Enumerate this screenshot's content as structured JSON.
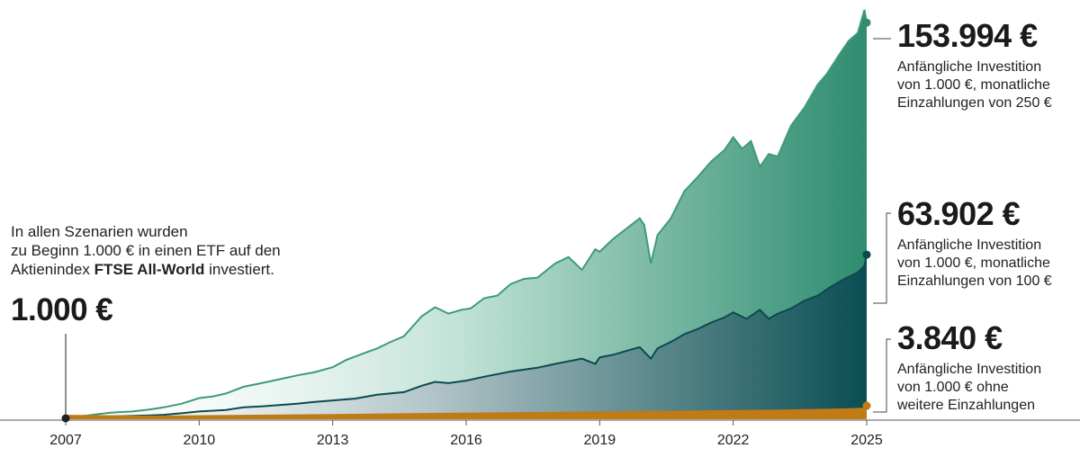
{
  "intro": {
    "line1": "In allen Szenarien wurden",
    "line2": "zu Beginn 1.000 € in einen ETF auf den",
    "line3_pre": "Aktienindex ",
    "line3_bold": "FTSE All-World",
    "line3_post": " investiert."
  },
  "start_value": "1.000 €",
  "callouts": [
    {
      "value": "153.994 €",
      "lines": [
        "Anfängliche Investition",
        "von 1.000 €, monatliche",
        "Einzahlungen von 250 €"
      ]
    },
    {
      "value": "63.902 €",
      "lines": [
        "Anfängliche Investition",
        "von 1.000 €, monatliche",
        "Einzahlungen von 100 €"
      ]
    },
    {
      "value": "3.840 €",
      "lines": [
        "Anfängliche Investition",
        "von 1.000 € ohne",
        "weitere Einzahlungen"
      ]
    }
  ],
  "chart_data": {
    "type": "area",
    "x_ticks": [
      "2007",
      "2010",
      "2013",
      "2016",
      "2019",
      "2022",
      "2025"
    ],
    "xlim": [
      2007,
      2025
    ],
    "ylim": [
      0,
      160000
    ],
    "colors": {
      "top_area": "#2e8c6f",
      "top_line": "#3d9a7c",
      "mid_area": "#0d5358",
      "mid_line": "#0b4a4f",
      "bottom_area": "#c07a16",
      "start_dot": "#222222",
      "axis": "#555555"
    },
    "series": [
      {
        "name": "Anfängliche Investition von 1.000 €, monatliche Einzahlungen von 250 €",
        "final": 153994,
        "x": [
          2007.0,
          2007.5,
          2008.0,
          2008.5,
          2008.9,
          2009.2,
          2009.6,
          2010.0,
          2010.3,
          2010.6,
          2011.0,
          2011.4,
          2011.8,
          2012.2,
          2012.6,
          2013.0,
          2013.3,
          2013.7,
          2014.0,
          2014.3,
          2014.6,
          2015.0,
          2015.3,
          2015.6,
          2015.9,
          2016.1,
          2016.4,
          2016.7,
          2017.0,
          2017.3,
          2017.6,
          2018.0,
          2018.3,
          2018.6,
          2018.9,
          2019.0,
          2019.3,
          2019.6,
          2019.9,
          2020.0,
          2020.15,
          2020.3,
          2020.6,
          2020.9,
          2021.2,
          2021.5,
          2021.8,
          2022.0,
          2022.2,
          2022.4,
          2022.6,
          2022.8,
          2023.0,
          2023.3,
          2023.6,
          2023.9,
          2024.1,
          2024.4,
          2024.6,
          2024.8,
          2024.95,
          2025.0
        ],
        "y": [
          600,
          1500,
          2500,
          3000,
          3800,
          4600,
          6000,
          8200,
          8800,
          10000,
          12600,
          14000,
          15500,
          17000,
          18300,
          20200,
          23000,
          25600,
          27500,
          30000,
          32200,
          40000,
          43500,
          41000,
          42500,
          43000,
          47000,
          48000,
          52500,
          54500,
          55000,
          60500,
          63000,
          58000,
          66000,
          65000,
          70000,
          74000,
          78000,
          75500,
          60500,
          71500,
          78000,
          88500,
          94000,
          100000,
          104500,
          109500,
          105000,
          108000,
          98000,
          103000,
          102000,
          114000,
          121000,
          130000,
          134000,
          142000,
          147000,
          150000,
          159000,
          153994
        ]
      },
      {
        "name": "Anfängliche Investition von 1.000 €, monatliche Einzahlungen von 100 €",
        "final": 63902,
        "x": [
          2007.0,
          2007.5,
          2008.0,
          2008.5,
          2008.9,
          2009.2,
          2009.6,
          2010.0,
          2010.6,
          2011.0,
          2011.4,
          2011.8,
          2012.2,
          2012.6,
          2013.0,
          2013.5,
          2014.0,
          2014.6,
          2015.0,
          2015.3,
          2015.6,
          2016.0,
          2016.4,
          2017.0,
          2017.6,
          2018.0,
          2018.6,
          2018.9,
          2019.0,
          2019.3,
          2019.6,
          2019.9,
          2020.15,
          2020.3,
          2020.6,
          2020.9,
          2021.2,
          2021.5,
          2021.8,
          2022.0,
          2022.3,
          2022.6,
          2022.8,
          2023.0,
          2023.3,
          2023.6,
          2023.9,
          2024.2,
          2024.5,
          2024.8,
          2024.95,
          2025.0
        ],
        "y": [
          400,
          800,
          1100,
          1300,
          1500,
          1700,
          2300,
          3000,
          3600,
          4600,
          5000,
          5500,
          6000,
          6700,
          7300,
          8000,
          9500,
          10500,
          13000,
          14500,
          14000,
          15000,
          16500,
          18500,
          20000,
          21500,
          23500,
          21500,
          24000,
          25000,
          26500,
          28000,
          23500,
          27500,
          30000,
          33000,
          35000,
          37500,
          39500,
          41500,
          39000,
          42500,
          39000,
          41000,
          43000,
          46000,
          48000,
          51500,
          54500,
          57000,
          59500,
          63902
        ]
      },
      {
        "name": "Anfängliche Investition von 1.000 € ohne weitere Einzahlungen",
        "final": 3840,
        "x": [
          2007.0,
          2009.0,
          2011.0,
          2013.0,
          2015.0,
          2017.0,
          2019.0,
          2021.0,
          2023.0,
          2024.5,
          2025.0
        ],
        "y": [
          1000,
          700,
          1000,
          1300,
          1700,
          2000,
          2300,
          2700,
          3000,
          3500,
          3840
        ]
      }
    ]
  }
}
